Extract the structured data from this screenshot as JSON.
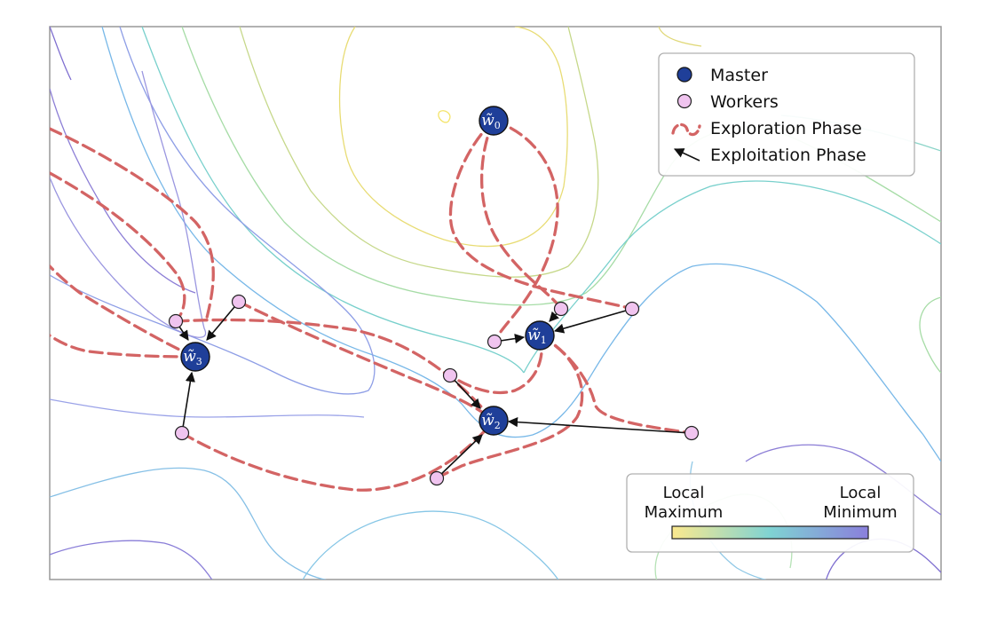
{
  "diagram": {
    "legend": {
      "items": [
        {
          "key": "master",
          "label": "Master"
        },
        {
          "key": "workers",
          "label": "Workers"
        },
        {
          "key": "exploration",
          "label": "Exploration Phase"
        },
        {
          "key": "exploitation",
          "label": "Exploitation Phase"
        }
      ]
    },
    "colorbar": {
      "left_label_line1": "Local",
      "left_label_line2": "Maximum",
      "right_label_line1": "Local",
      "right_label_line2": "Minimum"
    },
    "masters": [
      {
        "id": "w0",
        "symbol": "w̃",
        "subscript": "0"
      },
      {
        "id": "w1",
        "symbol": "w̃",
        "subscript": "1"
      },
      {
        "id": "w2",
        "symbol": "w̃",
        "subscript": "2"
      },
      {
        "id": "w3",
        "symbol": "w̃",
        "subscript": "3"
      }
    ],
    "colors": {
      "master_fill": "#1f3f99",
      "worker_fill": "#f0c4ef",
      "exploration": "#d36464",
      "exploitation": "#111111",
      "colorbar_start": "#fbe98e",
      "colorbar_mid": "#7fd3d3",
      "colorbar_end": "#8a7fdc"
    }
  }
}
